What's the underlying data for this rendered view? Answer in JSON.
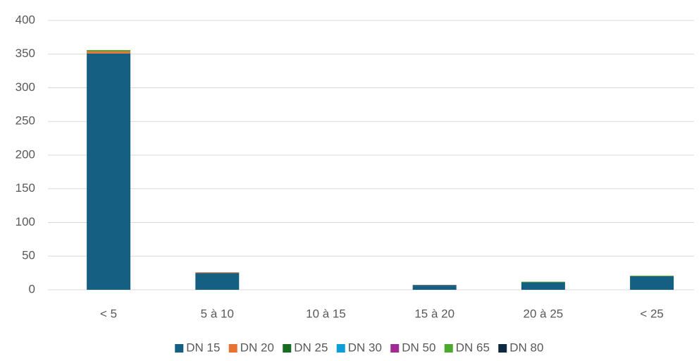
{
  "chart_data": {
    "type": "stacked_bar",
    "categories": [
      "< 5",
      "5 à 10",
      "10 à 15",
      "15 à 20",
      "20 à 25",
      "< 25"
    ],
    "series": [
      {
        "name": "DN 15",
        "color": "#156082",
        "values": [
          351,
          25,
          0,
          6,
          11,
          20
        ]
      },
      {
        "name": "DN 20",
        "color": "#e97132",
        "values": [
          3,
          1,
          0,
          0,
          0,
          0
        ]
      },
      {
        "name": "DN 25",
        "color": "#196b24",
        "values": [
          0,
          0,
          0,
          0,
          0,
          0
        ]
      },
      {
        "name": "DN 30",
        "color": "#0f9ed5",
        "values": [
          0,
          0,
          0,
          0,
          0,
          0
        ]
      },
      {
        "name": "DN 50",
        "color": "#a02b93",
        "values": [
          0,
          0,
          0,
          0,
          0,
          0
        ]
      },
      {
        "name": "DN 65",
        "color": "#4ea72e",
        "values": [
          2,
          0,
          0,
          0,
          1,
          1
        ]
      },
      {
        "name": "DN 80",
        "color": "#0e2841",
        "values": [
          0,
          0,
          0,
          1,
          0,
          0
        ]
      }
    ],
    "ylim": [
      0,
      400
    ],
    "yticks": [
      0,
      50,
      100,
      150,
      200,
      250,
      300,
      350,
      400
    ],
    "grid": true,
    "legend": "bottom"
  }
}
